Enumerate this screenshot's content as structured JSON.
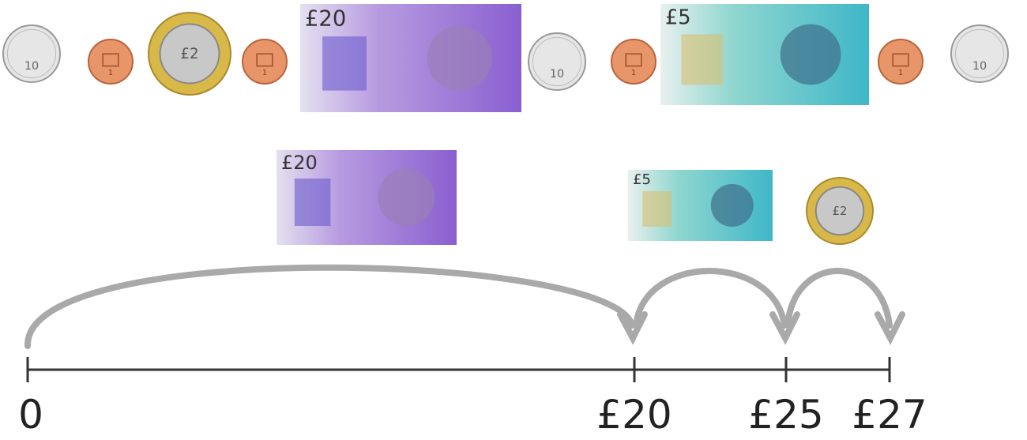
{
  "top_row": [
    {
      "label": "10"
    },
    {
      "label": "1"
    },
    {
      "label": "£2"
    },
    {
      "label": "1"
    },
    {
      "label": "£20"
    },
    {
      "label": "10"
    },
    {
      "label": "1"
    },
    {
      "label": "£5"
    },
    {
      "label": "1"
    },
    {
      "label": "10"
    }
  ],
  "bottom_row": [
    {
      "label": "£20"
    },
    {
      "label": "£5"
    },
    {
      "label": "£2"
    }
  ],
  "number_line": {
    "labels": [
      "0",
      "£20",
      "£25",
      "£27"
    ]
  }
}
